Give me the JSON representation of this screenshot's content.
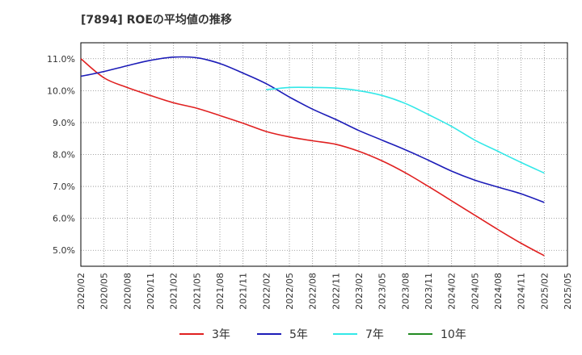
{
  "title": "[7894]  ROEの平均値の推移",
  "colors": {
    "grid": "#888888",
    "axis": "#000000",
    "text": "#333333"
  },
  "chart_data": {
    "type": "line",
    "title": "[7894]  ROEの平均値の推移",
    "xlabel": "",
    "ylabel": "",
    "x_ticks": [
      "2020/02",
      "2020/05",
      "2020/08",
      "2020/11",
      "2021/02",
      "2021/05",
      "2021/08",
      "2021/11",
      "2022/02",
      "2022/05",
      "2022/08",
      "2022/11",
      "2023/02",
      "2023/05",
      "2023/08",
      "2023/11",
      "2024/02",
      "2024/05",
      "2024/08",
      "2024/11",
      "2025/02",
      "2025/05"
    ],
    "y_ticks": [
      "5.0%",
      "6.0%",
      "7.0%",
      "8.0%",
      "9.0%",
      "10.0%",
      "11.0%"
    ],
    "ylim": [
      4.5,
      11.5
    ],
    "grid": true,
    "legend_position": "bottom",
    "series": [
      {
        "name": "3年",
        "color": "#e02020",
        "x": [
          "2020/02",
          "2020/05",
          "2020/08",
          "2020/11",
          "2021/02",
          "2021/05",
          "2021/08",
          "2021/11",
          "2022/02",
          "2022/05",
          "2022/08",
          "2022/11",
          "2023/02",
          "2023/05",
          "2023/08",
          "2023/11",
          "2024/02",
          "2024/05",
          "2024/08",
          "2024/11",
          "2025/02"
        ],
        "values": [
          11.0,
          10.4,
          10.1,
          9.85,
          9.62,
          9.45,
          9.22,
          8.98,
          8.72,
          8.55,
          8.43,
          8.32,
          8.1,
          7.8,
          7.43,
          7.0,
          6.55,
          6.1,
          5.65,
          5.22,
          4.83
        ]
      },
      {
        "name": "5年",
        "color": "#1c1cb8",
        "x": [
          "2020/02",
          "2020/05",
          "2020/08",
          "2020/11",
          "2021/02",
          "2021/05",
          "2021/08",
          "2021/11",
          "2022/02",
          "2022/05",
          "2022/08",
          "2022/11",
          "2023/02",
          "2023/05",
          "2023/08",
          "2023/11",
          "2024/02",
          "2024/05",
          "2024/08",
          "2024/11",
          "2025/02"
        ],
        "values": [
          10.45,
          10.6,
          10.78,
          10.95,
          11.05,
          11.03,
          10.85,
          10.55,
          10.22,
          9.8,
          9.42,
          9.1,
          8.75,
          8.45,
          8.15,
          7.82,
          7.48,
          7.2,
          6.98,
          6.77,
          6.5
        ]
      },
      {
        "name": "7年",
        "color": "#33e8e8",
        "x": [
          "2022/02",
          "2022/05",
          "2022/08",
          "2022/11",
          "2023/02",
          "2023/05",
          "2023/08",
          "2023/11",
          "2024/02",
          "2024/05",
          "2024/08",
          "2024/11",
          "2025/02"
        ],
        "values": [
          10.03,
          10.1,
          10.1,
          10.08,
          10.0,
          9.85,
          9.6,
          9.25,
          8.88,
          8.45,
          8.1,
          7.75,
          7.42
        ]
      },
      {
        "name": "10年",
        "color": "#228b22",
        "x": [],
        "values": []
      }
    ]
  }
}
